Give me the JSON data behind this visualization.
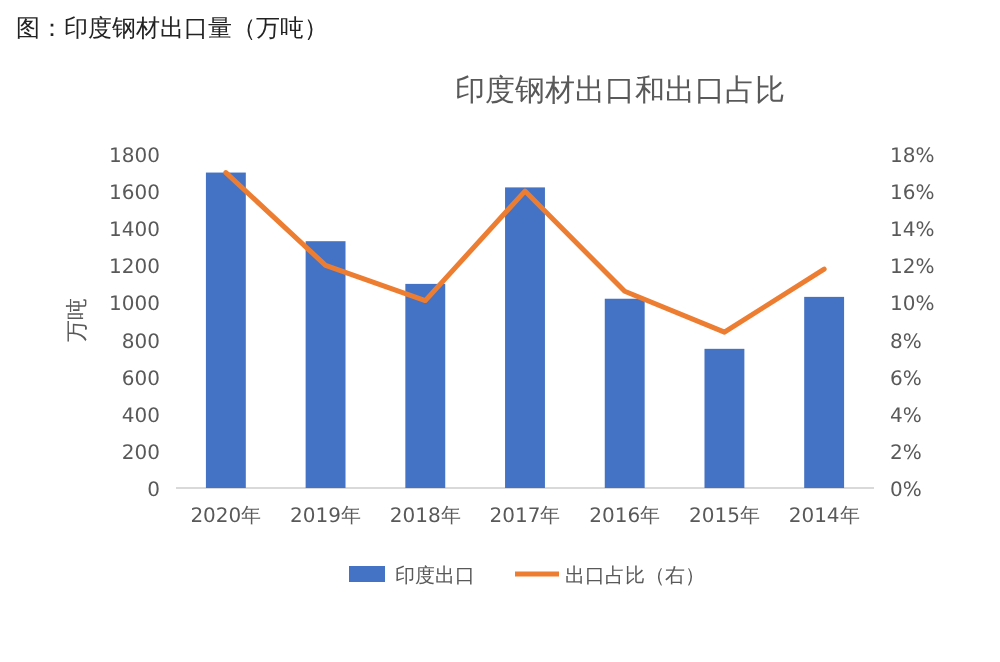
{
  "chart_data": {
    "type": "bar",
    "title": "印度钢材出口和出口占比",
    "ylabel": "万吨",
    "annotations": [
      "图：印度钢材出口量（万吨）"
    ],
    "categories": [
      "2020年",
      "2019年",
      "2018年",
      "2017年",
      "2016年",
      "2015年",
      "2014年"
    ],
    "series": [
      {
        "name": "印度出口",
        "color": "#4472c4",
        "values": [
          1700,
          1330,
          1100,
          1620,
          1020,
          750,
          1030
        ]
      },
      {
        "name": "出口占比（右）",
        "type": "line",
        "axis": "y2",
        "color": "#ed7d31",
        "values": [
          17.0,
          12.0,
          10.1,
          16.0,
          10.6,
          8.4,
          11.8
        ]
      }
    ],
    "ylim": [
      0,
      1800
    ],
    "yticks": [
      0,
      200,
      400,
      600,
      800,
      1000,
      1200,
      1400,
      1600,
      1800
    ],
    "y2lim": [
      0,
      18
    ],
    "y2ticks": [
      {
        "value": 0,
        "label": "0%"
      },
      {
        "value": 2,
        "label": "2%"
      },
      {
        "value": 4,
        "label": "4%"
      },
      {
        "value": 6,
        "label": "6%"
      },
      {
        "value": 8,
        "label": "8%"
      },
      {
        "value": 10,
        "label": "10%"
      },
      {
        "value": 12,
        "label": "12%"
      },
      {
        "value": 14,
        "label": "14%"
      },
      {
        "value": 16,
        "label": "16%"
      },
      {
        "value": 18,
        "label": "18%"
      }
    ],
    "legend": "bottom"
  }
}
